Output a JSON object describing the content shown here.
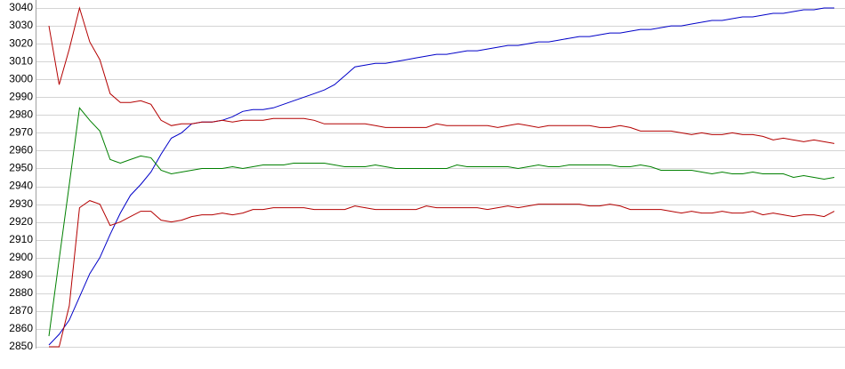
{
  "chart_data": {
    "type": "line",
    "categories": [
      null,
      null,
      null,
      null,
      null,
      null,
      null,
      null,
      null,
      null,
      null,
      null,
      null,
      null,
      null,
      null,
      null,
      null,
      null,
      null,
      null,
      null,
      null,
      null,
      null,
      null,
      null,
      null,
      null,
      null,
      null,
      null,
      null,
      null,
      null,
      null,
      null,
      null,
      null,
      null,
      null,
      null,
      null,
      null,
      null,
      null,
      null,
      null,
      null,
      null,
      null,
      null,
      null,
      null,
      null,
      null,
      null,
      null,
      null,
      null,
      null,
      null,
      null,
      null,
      null,
      null,
      null,
      null,
      null,
      null,
      null,
      null,
      null,
      null,
      null,
      null,
      null,
      null
    ],
    "series": [
      {
        "color": "#0000c8",
        "values": [
          2851,
          2857,
          2865,
          2878,
          2891,
          2900,
          2913,
          2925,
          2935,
          2941,
          2948,
          2958,
          2967,
          2970,
          2975,
          2976,
          2976,
          2977,
          2979,
          2982,
          2983,
          2983,
          2984,
          2986,
          2988,
          2990,
          2992,
          2994,
          2997,
          3002,
          3007,
          3008,
          3009,
          3009,
          3010,
          3011,
          3012,
          3013,
          3014,
          3014,
          3015,
          3016,
          3016,
          3017,
          3018,
          3019,
          3019,
          3020,
          3021,
          3021,
          3022,
          3023,
          3024,
          3024,
          3025,
          3026,
          3026,
          3027,
          3028,
          3028,
          3029,
          3030,
          3030,
          3031,
          3032,
          3033,
          3033,
          3034,
          3035,
          3035,
          3036,
          3037,
          3037,
          3038,
          3039,
          3039,
          3040,
          3040
        ]
      },
      {
        "color": "#b40000",
        "values": [
          3030,
          2997,
          3017,
          3040,
          3021,
          3011,
          2992,
          2987,
          2987,
          2988,
          2986,
          2977,
          2974,
          2975,
          2975,
          2976,
          2976,
          2977,
          2976,
          2977,
          2977,
          2977,
          2978,
          2978,
          2978,
          2978,
          2977,
          2975,
          2975,
          2975,
          2975,
          2975,
          2974,
          2973,
          2973,
          2973,
          2973,
          2973,
          2975,
          2974,
          2974,
          2974,
          2974,
          2974,
          2973,
          2974,
          2975,
          2974,
          2973,
          2974,
          2974,
          2974,
          2974,
          2974,
          2973,
          2973,
          2974,
          2973,
          2971,
          2971,
          2971,
          2971,
          2970,
          2969,
          2970,
          2969,
          2969,
          2970,
          2969,
          2969,
          2968,
          2966,
          2967,
          2966,
          2965,
          2966,
          2965,
          2964
        ]
      },
      {
        "color": "#008000",
        "values": [
          2856,
          2899,
          2941,
          2984,
          2977,
          2971,
          2955,
          2953,
          2955,
          2957,
          2956,
          2949,
          2947,
          2948,
          2949,
          2950,
          2950,
          2950,
          2951,
          2950,
          2951,
          2952,
          2952,
          2952,
          2953,
          2953,
          2953,
          2953,
          2952,
          2951,
          2951,
          2951,
          2952,
          2951,
          2950,
          2950,
          2950,
          2950,
          2950,
          2950,
          2952,
          2951,
          2951,
          2951,
          2951,
          2951,
          2950,
          2951,
          2952,
          2951,
          2951,
          2952,
          2952,
          2952,
          2952,
          2952,
          2951,
          2951,
          2952,
          2951,
          2949,
          2949,
          2949,
          2949,
          2948,
          2947,
          2948,
          2947,
          2947,
          2948,
          2947,
          2947,
          2947,
          2945,
          2946,
          2945,
          2944,
          2945
        ]
      },
      {
        "color": "#b40000",
        "values": [
          2850,
          2850,
          2873,
          2928,
          2932,
          2930,
          2918,
          2920,
          2923,
          2926,
          2926,
          2921,
          2920,
          2921,
          2923,
          2924,
          2924,
          2925,
          2924,
          2925,
          2927,
          2927,
          2928,
          2928,
          2928,
          2928,
          2927,
          2927,
          2927,
          2927,
          2929,
          2928,
          2927,
          2927,
          2927,
          2927,
          2927,
          2929,
          2928,
          2928,
          2928,
          2928,
          2928,
          2927,
          2928,
          2929,
          2928,
          2929,
          2930,
          2930,
          2930,
          2930,
          2930,
          2929,
          2929,
          2930,
          2929,
          2927,
          2927,
          2927,
          2927,
          2926,
          2925,
          2926,
          2925,
          2925,
          2926,
          2925,
          2925,
          2926,
          2924,
          2925,
          2924,
          2923,
          2924,
          2924,
          2923,
          2926
        ]
      }
    ],
    "ylim": [
      2850,
      3040
    ],
    "yticks": [
      2850,
      2860,
      2870,
      2880,
      2890,
      2900,
      2910,
      2920,
      2930,
      2940,
      2950,
      2960,
      2970,
      2980,
      2990,
      3000,
      3010,
      3020,
      3030,
      3040
    ],
    "grid": true
  }
}
